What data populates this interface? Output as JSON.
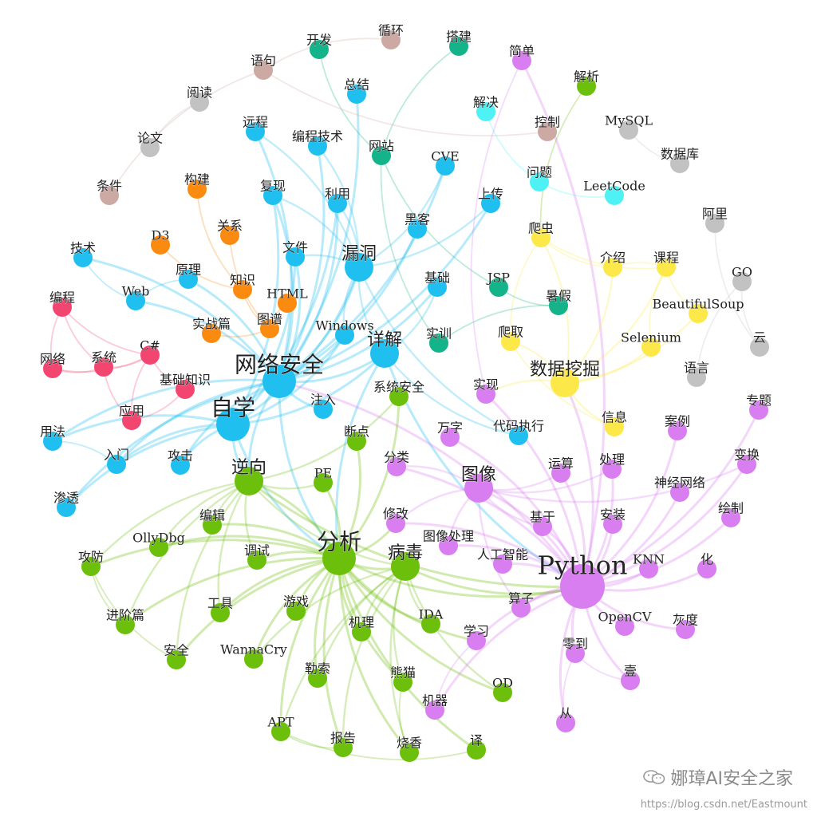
{
  "graph": {
    "group_colors": {
      "security": "#1fbff0",
      "reverse": "#6cbf0a",
      "python": "#d97ef0",
      "crawler": "#fde84a",
      "teal": "#14b38a",
      "orange": "#fb8a10",
      "pink": "#f2456f",
      "gray": "#c2c2c2",
      "brown": "#cda9a3",
      "cyan": "#4ff2f4"
    },
    "nodes": [
      {
        "id": "Python",
        "group": "python",
        "size": 4
      },
      {
        "id": "分析",
        "group": "reverse",
        "size": 3
      },
      {
        "id": "网络安全",
        "group": "security",
        "size": 3
      },
      {
        "id": "自学",
        "group": "security",
        "size": 3
      },
      {
        "id": "漏洞",
        "group": "security",
        "size": 2
      },
      {
        "id": "图像",
        "group": "python",
        "size": 2
      },
      {
        "id": "逆向",
        "group": "reverse",
        "size": 2
      },
      {
        "id": "病毒",
        "group": "reverse",
        "size": 2
      },
      {
        "id": "详解",
        "group": "security",
        "size": 2
      },
      {
        "id": "数据挖掘",
        "group": "crawler",
        "size": 2
      },
      {
        "id": "爬虫",
        "group": "crawler",
        "size": 1
      },
      {
        "id": "课程",
        "group": "crawler",
        "size": 1
      },
      {
        "id": "介绍",
        "group": "crawler",
        "size": 1
      },
      {
        "id": "BeautifulSoup",
        "group": "crawler",
        "size": 1
      },
      {
        "id": "Selenium",
        "group": "crawler",
        "size": 1
      },
      {
        "id": "爬取",
        "group": "crawler",
        "size": 1
      },
      {
        "id": "信息",
        "group": "crawler",
        "size": 1
      },
      {
        "id": "开发",
        "group": "teal",
        "size": 1
      },
      {
        "id": "搭建",
        "group": "teal",
        "size": 1
      },
      {
        "id": "网站",
        "group": "teal",
        "size": 1
      },
      {
        "id": "JSP",
        "group": "teal",
        "size": 1
      },
      {
        "id": "暑假",
        "group": "teal",
        "size": 1
      },
      {
        "id": "实训",
        "group": "teal",
        "size": 1
      },
      {
        "id": "循环",
        "group": "brown",
        "size": 1
      },
      {
        "id": "语句",
        "group": "brown",
        "size": 1
      },
      {
        "id": "控制",
        "group": "brown",
        "size": 1
      },
      {
        "id": "条件",
        "group": "brown",
        "size": 1
      },
      {
        "id": "阅读",
        "group": "gray",
        "size": 1
      },
      {
        "id": "论文",
        "group": "gray",
        "size": 1
      },
      {
        "id": "MySQL",
        "group": "gray",
        "size": 1
      },
      {
        "id": "数据库",
        "group": "gray",
        "size": 1
      },
      {
        "id": "阿里",
        "group": "gray",
        "size": 1
      },
      {
        "id": "GO",
        "group": "gray",
        "size": 1
      },
      {
        "id": "云",
        "group": "gray",
        "size": 1
      },
      {
        "id": "语言",
        "group": "gray",
        "size": 1
      },
      {
        "id": "解决",
        "group": "cyan",
        "size": 1
      },
      {
        "id": "问题",
        "group": "cyan",
        "size": 1
      },
      {
        "id": "LeetCode",
        "group": "cyan",
        "size": 1
      },
      {
        "id": "简单",
        "group": "python",
        "size": 1
      },
      {
        "id": "解析",
        "group": "reverse",
        "size": 1
      },
      {
        "id": "总结",
        "group": "security",
        "size": 1
      },
      {
        "id": "远程",
        "group": "security",
        "size": 1
      },
      {
        "id": "编程技术",
        "group": "security",
        "size": 1
      },
      {
        "id": "CVE",
        "group": "security",
        "size": 1
      },
      {
        "id": "复现",
        "group": "security",
        "size": 1
      },
      {
        "id": "利用",
        "group": "security",
        "size": 1
      },
      {
        "id": "上传",
        "group": "security",
        "size": 1
      },
      {
        "id": "黑客",
        "group": "security",
        "size": 1
      },
      {
        "id": "技术",
        "group": "security",
        "size": 1
      },
      {
        "id": "文件",
        "group": "security",
        "size": 1
      },
      {
        "id": "基础",
        "group": "security",
        "size": 1
      },
      {
        "id": "原理",
        "group": "security",
        "size": 1
      },
      {
        "id": "Web",
        "group": "security",
        "size": 1
      },
      {
        "id": "Windows",
        "group": "security",
        "size": 1
      },
      {
        "id": "注入",
        "group": "security",
        "size": 1
      },
      {
        "id": "用法",
        "group": "security",
        "size": 1
      },
      {
        "id": "入门",
        "group": "security",
        "size": 1
      },
      {
        "id": "攻击",
        "group": "security",
        "size": 1
      },
      {
        "id": "渗透",
        "group": "security",
        "size": 1
      },
      {
        "id": "代码执行",
        "group": "security",
        "size": 1
      },
      {
        "id": "构建",
        "group": "orange",
        "size": 1
      },
      {
        "id": "关系",
        "group": "orange",
        "size": 1
      },
      {
        "id": "D3",
        "group": "orange",
        "size": 1
      },
      {
        "id": "知识",
        "group": "orange",
        "size": 1
      },
      {
        "id": "HTML",
        "group": "orange",
        "size": 1
      },
      {
        "id": "图谱",
        "group": "orange",
        "size": 1
      },
      {
        "id": "实战篇",
        "group": "orange",
        "size": 1
      },
      {
        "id": "编程",
        "group": "pink",
        "size": 1
      },
      {
        "id": "网络",
        "group": "pink",
        "size": 1
      },
      {
        "id": "系统",
        "group": "pink",
        "size": 1
      },
      {
        "id": "C#",
        "group": "pink",
        "size": 1
      },
      {
        "id": "基础知识",
        "group": "pink",
        "size": 1
      },
      {
        "id": "应用",
        "group": "pink",
        "size": 1
      },
      {
        "id": "系统安全",
        "group": "reverse",
        "size": 1
      },
      {
        "id": "断点",
        "group": "reverse",
        "size": 1
      },
      {
        "id": "PE",
        "group": "reverse",
        "size": 1
      },
      {
        "id": "编辑",
        "group": "reverse",
        "size": 1
      },
      {
        "id": "OllyDbg",
        "group": "reverse",
        "size": 1
      },
      {
        "id": "攻防",
        "group": "reverse",
        "size": 1
      },
      {
        "id": "调试",
        "group": "reverse",
        "size": 1
      },
      {
        "id": "进阶篇",
        "group": "reverse",
        "size": 1
      },
      {
        "id": "工具",
        "group": "reverse",
        "size": 1
      },
      {
        "id": "游戏",
        "group": "reverse",
        "size": 1
      },
      {
        "id": "安全",
        "group": "reverse",
        "size": 1
      },
      {
        "id": "WannaCry",
        "group": "reverse",
        "size": 1
      },
      {
        "id": "勒索",
        "group": "reverse",
        "size": 1
      },
      {
        "id": "机理",
        "group": "reverse",
        "size": 1
      },
      {
        "id": "IDA",
        "group": "reverse",
        "size": 1
      },
      {
        "id": "熊猫",
        "group": "reverse",
        "size": 1
      },
      {
        "id": "OD",
        "group": "reverse",
        "size": 1
      },
      {
        "id": "APT",
        "group": "reverse",
        "size": 1
      },
      {
        "id": "报告",
        "group": "reverse",
        "size": 1
      },
      {
        "id": "烧香",
        "group": "reverse",
        "size": 1
      },
      {
        "id": "译",
        "group": "reverse",
        "size": 1
      },
      {
        "id": "实现",
        "group": "python",
        "size": 1
      },
      {
        "id": "万字",
        "group": "python",
        "size": 1
      },
      {
        "id": "分类",
        "group": "python",
        "size": 1
      },
      {
        "id": "修改",
        "group": "python",
        "size": 1
      },
      {
        "id": "图像处理",
        "group": "python",
        "size": 1
      },
      {
        "id": "人工智能",
        "group": "python",
        "size": 1
      },
      {
        "id": "运算",
        "group": "python",
        "size": 1
      },
      {
        "id": "处理",
        "group": "python",
        "size": 1
      },
      {
        "id": "基于",
        "group": "python",
        "size": 1
      },
      {
        "id": "案例",
        "group": "python",
        "size": 1
      },
      {
        "id": "专题",
        "group": "python",
        "size": 1
      },
      {
        "id": "变换",
        "group": "python",
        "size": 1
      },
      {
        "id": "神经网络",
        "group": "python",
        "size": 1
      },
      {
        "id": "安装",
        "group": "python",
        "size": 1
      },
      {
        "id": "绘制",
        "group": "python",
        "size": 1
      },
      {
        "id": "KNN",
        "group": "python",
        "size": 1
      },
      {
        "id": "化",
        "group": "python",
        "size": 1
      },
      {
        "id": "算子",
        "group": "python",
        "size": 1
      },
      {
        "id": "OpenCV",
        "group": "python",
        "size": 1
      },
      {
        "id": "灰度",
        "group": "python",
        "size": 1
      },
      {
        "id": "学习",
        "group": "python",
        "size": 1
      },
      {
        "id": "零到",
        "group": "python",
        "size": 1
      },
      {
        "id": "壹",
        "group": "python",
        "size": 1
      },
      {
        "id": "机器",
        "group": "python",
        "size": 1
      },
      {
        "id": "从",
        "group": "python",
        "size": 1
      }
    ],
    "edges": [
      [
        "网络安全",
        "自学"
      ],
      [
        "网络安全",
        "漏洞"
      ],
      [
        "网络安全",
        "详解"
      ],
      [
        "网络安全",
        "复现"
      ],
      [
        "网络安全",
        "利用"
      ],
      [
        "网络安全",
        "文件"
      ],
      [
        "网络安全",
        "Windows"
      ],
      [
        "网络安全",
        "入门"
      ],
      [
        "网络安全",
        "攻击"
      ],
      [
        "网络安全",
        "技术"
      ],
      [
        "网络安全",
        "编程技术"
      ],
      [
        "网络安全",
        "远程"
      ],
      [
        "网络安全",
        "CVE"
      ],
      [
        "网络安全",
        "上传"
      ],
      [
        "网络安全",
        "黑客"
      ],
      [
        "网络安全",
        "基础"
      ],
      [
        "网络安全",
        "原理"
      ],
      [
        "网络安全",
        "Web"
      ],
      [
        "网络安全",
        "注入"
      ],
      [
        "网络安全",
        "渗透"
      ],
      [
        "网络安全",
        "用法"
      ],
      [
        "网络安全",
        "总结"
      ],
      [
        "网络安全",
        "分析"
      ],
      [
        "网络安全",
        "逆向"
      ],
      [
        "自学",
        "漏洞"
      ],
      [
        "自学",
        "详解"
      ],
      [
        "自学",
        "入门"
      ],
      [
        "自学",
        "渗透"
      ],
      [
        "自学",
        "用法"
      ],
      [
        "自学",
        "攻击"
      ],
      [
        "自学",
        "分析"
      ],
      [
        "自学",
        "逆向"
      ],
      [
        "自学",
        "文件"
      ],
      [
        "自学",
        "复现"
      ],
      [
        "自学",
        "利用"
      ],
      [
        "自学",
        "Windows"
      ],
      [
        "漏洞",
        "复现"
      ],
      [
        "漏洞",
        "利用"
      ],
      [
        "漏洞",
        "CVE"
      ],
      [
        "漏洞",
        "远程"
      ],
      [
        "漏洞",
        "代码执行"
      ],
      [
        "漏洞",
        "上传"
      ],
      [
        "漏洞",
        "文件"
      ],
      [
        "漏洞",
        "编程技术"
      ],
      [
        "漏洞",
        "Windows"
      ],
      [
        "漏洞",
        "详解"
      ],
      [
        "详解",
        "分析"
      ],
      [
        "详解",
        "Python"
      ],
      [
        "详解",
        "代码执行"
      ],
      [
        "详解",
        "基础"
      ],
      [
        "技术",
        "Web"
      ],
      [
        "入门",
        "用法"
      ],
      [
        "原理",
        "Web"
      ],
      [
        "分析",
        "逆向"
      ],
      [
        "分析",
        "病毒"
      ],
      [
        "分析",
        "PE"
      ],
      [
        "分析",
        "系统安全"
      ],
      [
        "分析",
        "断点"
      ],
      [
        "分析",
        "编辑"
      ],
      [
        "分析",
        "OllyDbg"
      ],
      [
        "分析",
        "调试"
      ],
      [
        "分析",
        "攻防"
      ],
      [
        "分析",
        "进阶篇"
      ],
      [
        "分析",
        "工具"
      ],
      [
        "分析",
        "游戏"
      ],
      [
        "分析",
        "安全"
      ],
      [
        "分析",
        "WannaCry"
      ],
      [
        "分析",
        "勒索"
      ],
      [
        "分析",
        "机理"
      ],
      [
        "分析",
        "IDA"
      ],
      [
        "分析",
        "熊猫"
      ],
      [
        "分析",
        "APT"
      ],
      [
        "分析",
        "报告"
      ],
      [
        "分析",
        "烧香"
      ],
      [
        "分析",
        "OD"
      ],
      [
        "分析",
        "译"
      ],
      [
        "分析",
        "Python"
      ],
      [
        "分析",
        "修改"
      ],
      [
        "分析",
        "学习"
      ],
      [
        "逆向",
        "PE"
      ],
      [
        "逆向",
        "病毒"
      ],
      [
        "逆向",
        "攻防"
      ],
      [
        "逆向",
        "进阶篇"
      ],
      [
        "逆向",
        "OllyDbg"
      ],
      [
        "逆向",
        "编辑"
      ],
      [
        "逆向",
        "调试"
      ],
      [
        "逆向",
        "安全"
      ],
      [
        "逆向",
        "工具"
      ],
      [
        "逆向",
        "系统安全"
      ],
      [
        "逆向",
        "Python"
      ],
      [
        "病毒",
        "勒索"
      ],
      [
        "病毒",
        "WannaCry"
      ],
      [
        "病毒",
        "熊猫"
      ],
      [
        "病毒",
        "烧香"
      ],
      [
        "病毒",
        "机理"
      ],
      [
        "病毒",
        "IDA"
      ],
      [
        "病毒",
        "OD"
      ],
      [
        "病毒",
        "APT"
      ],
      [
        "病毒",
        "报告"
      ],
      [
        "病毒",
        "Python"
      ],
      [
        "攻防",
        "进阶篇"
      ],
      [
        "攻防",
        "安全"
      ],
      [
        "APT",
        "译"
      ],
      [
        "APT",
        "报告"
      ],
      [
        "熊猫",
        "烧香"
      ],
      [
        "Python",
        "图像"
      ],
      [
        "Python",
        "图像处理"
      ],
      [
        "Python",
        "人工智能"
      ],
      [
        "Python",
        "运算"
      ],
      [
        "Python",
        "处理"
      ],
      [
        "Python",
        "基于"
      ],
      [
        "Python",
        "案例"
      ],
      [
        "Python",
        "专题"
      ],
      [
        "Python",
        "变换"
      ],
      [
        "Python",
        "神经网络"
      ],
      [
        "Python",
        "安装"
      ],
      [
        "Python",
        "绘制"
      ],
      [
        "Python",
        "KNN"
      ],
      [
        "Python",
        "化"
      ],
      [
        "Python",
        "算子"
      ],
      [
        "Python",
        "OpenCV"
      ],
      [
        "Python",
        "灰度"
      ],
      [
        "Python",
        "学习"
      ],
      [
        "Python",
        "零到"
      ],
      [
        "Python",
        "壹"
      ],
      [
        "Python",
        "机器"
      ],
      [
        "Python",
        "从"
      ],
      [
        "Python",
        "分类"
      ],
      [
        "Python",
        "万字"
      ],
      [
        "Python",
        "实现"
      ],
      [
        "Python",
        "修改"
      ],
      [
        "Python",
        "数据挖掘"
      ],
      [
        "Python",
        "简单"
      ],
      [
        "Python",
        "网络安全"
      ],
      [
        "图像",
        "图像处理"
      ],
      [
        "图像",
        "分类"
      ],
      [
        "图像",
        "运算"
      ],
      [
        "图像",
        "处理"
      ],
      [
        "图像",
        "基于"
      ],
      [
        "图像",
        "修改"
      ],
      [
        "图像",
        "算子"
      ],
      [
        "图像",
        "变换"
      ],
      [
        "学习",
        "机器"
      ],
      [
        "零到",
        "壹"
      ],
      [
        "零到",
        "从"
      ],
      [
        "数据挖掘",
        "爬虫"
      ],
      [
        "数据挖掘",
        "课程"
      ],
      [
        "数据挖掘",
        "介绍"
      ],
      [
        "数据挖掘",
        "BeautifulSoup"
      ],
      [
        "数据挖掘",
        "Selenium"
      ],
      [
        "数据挖掘",
        "爬取"
      ],
      [
        "数据挖掘",
        "信息"
      ],
      [
        "数据挖掘",
        "实现"
      ],
      [
        "爬虫",
        "课程"
      ],
      [
        "爬虫",
        "介绍"
      ],
      [
        "爬虫",
        "爬取"
      ],
      [
        "课程",
        "BeautifulSoup"
      ],
      [
        "课程",
        "Selenium"
      ],
      [
        "课程",
        "介绍"
      ],
      [
        "爬取",
        "信息"
      ],
      [
        "开发",
        "网站"
      ],
      [
        "搭建",
        "网站"
      ],
      [
        "网站",
        "JSP"
      ],
      [
        "JSP",
        "暑假"
      ],
      [
        "暑假",
        "实训"
      ],
      [
        "网站",
        "实训"
      ],
      [
        "循环",
        "语句"
      ],
      [
        "语句",
        "控制"
      ],
      [
        "语句",
        "条件"
      ],
      [
        "阅读",
        "论文"
      ],
      [
        "MySQL",
        "数据库"
      ],
      [
        "阿里",
        "云"
      ],
      [
        "GO",
        "语言"
      ],
      [
        "GO",
        "云"
      ],
      [
        "解决",
        "问题"
      ],
      [
        "问题",
        "LeetCode"
      ],
      [
        "解析",
        "爬虫"
      ],
      [
        "简单",
        "实现"
      ],
      [
        "构建",
        "知识"
      ],
      [
        "关系",
        "图谱"
      ],
      [
        "D3",
        "知识"
      ],
      [
        "知识",
        "图谱"
      ],
      [
        "HTML",
        "图谱"
      ],
      [
        "实战篇",
        "图谱"
      ],
      [
        "编程",
        "网络"
      ],
      [
        "编程",
        "系统"
      ],
      [
        "编程",
        "C#"
      ],
      [
        "网络",
        "系统"
      ],
      [
        "网络",
        "C#"
      ],
      [
        "系统",
        "C#"
      ],
      [
        "C#",
        "基础知识"
      ],
      [
        "C#",
        "应用"
      ],
      [
        "系统",
        "应用"
      ],
      [
        "应用",
        "基础知识"
      ]
    ]
  },
  "watermark": {
    "name": "娜璋AI安全之家",
    "url": "https://blog.csdn.net/Eastmount"
  }
}
